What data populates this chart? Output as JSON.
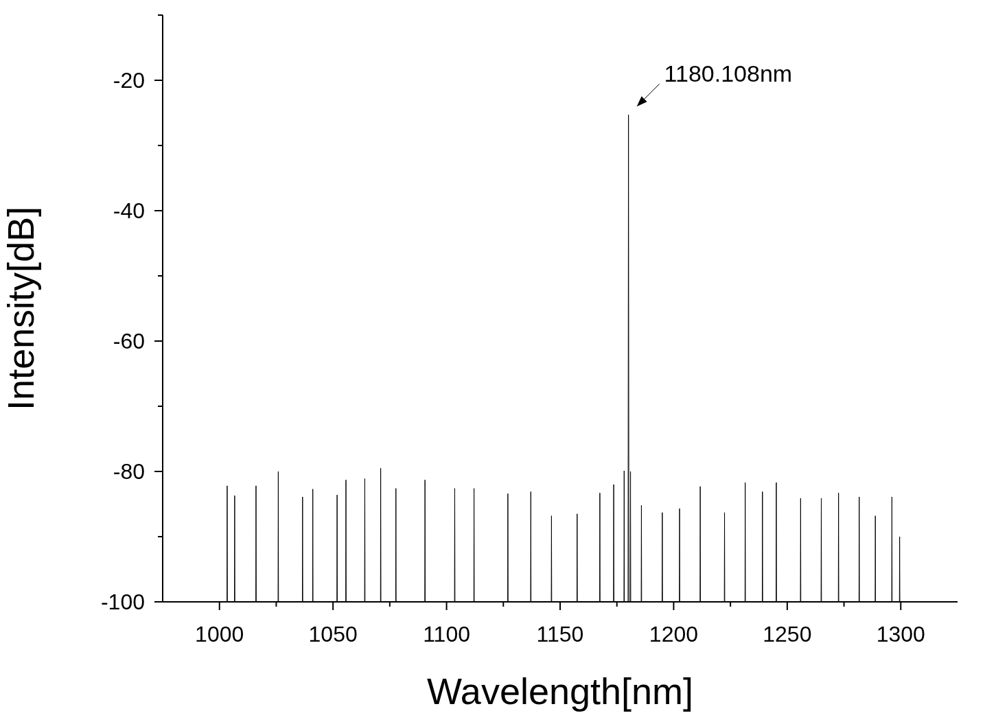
{
  "chart_data": {
    "type": "line",
    "xlabel": "Wavelength[nm]",
    "ylabel": "Intensity[dB]",
    "xlim": [
      975,
      1325
    ],
    "ylim": [
      -100,
      -10
    ],
    "xticks": [
      1000,
      {
        "value": 1025,
        "label": null
      },
      1050,
      {
        "value": 1075,
        "label": null
      },
      1100,
      {
        "value": 1125,
        "label": null
      },
      1150,
      {
        "value": 1175,
        "label": null
      },
      1200,
      {
        "value": 1225,
        "label": null
      },
      1250,
      {
        "value": 1275,
        "label": null
      },
      1300
    ],
    "yticks": [
      -100,
      {
        "value": -90,
        "label": null
      },
      -80,
      {
        "value": -70,
        "label": null
      },
      -60,
      {
        "value": -50,
        "label": null
      },
      -40,
      {
        "value": -30,
        "label": null
      },
      -20,
      {
        "value": -10,
        "label": null
      }
    ],
    "annotations": [
      {
        "text": "1180.108nm",
        "x": 1180.108,
        "y": -25.3
      }
    ],
    "grid": false,
    "legend": false,
    "marker": "none",
    "line_style": "solid",
    "series": [
      {
        "color": "#000000",
        "x": [
          1000,
          1003.3,
          1003.4,
          1003.5,
          1006.6,
          1006.7,
          1006.8,
          1016,
          1016.1,
          1016.2,
          1025.8,
          1025.9,
          1026,
          1036.5,
          1036.6,
          1036.7,
          1041,
          1041.1,
          1041.2,
          1051.7,
          1051.8,
          1051.9,
          1055.6,
          1055.7,
          1055.8,
          1063.9,
          1064,
          1064.1,
          1070.9,
          1071,
          1071.1,
          1077.6,
          1077.7,
          1077.8,
          1090.4,
          1090.5,
          1090.6,
          1103.5,
          1103.6,
          1103.7,
          1112,
          1112.1,
          1112.2,
          1126.9,
          1127,
          1127.1,
          1137,
          1137.1,
          1137.2,
          1146.1,
          1146.2,
          1146.3,
          1157.4,
          1157.5,
          1157.6,
          1167.4,
          1167.5,
          1167.6,
          1173.5,
          1173.6,
          1173.7,
          1178.1,
          1178.2,
          1178.3,
          1179.9,
          1180.108,
          1180.3,
          1180.9,
          1181,
          1181.1,
          1185.7,
          1185.8,
          1185.9,
          1194.9,
          1195,
          1195.1,
          1202.5,
          1202.6,
          1202.7,
          1211.6,
          1211.7,
          1211.8,
          1222.3,
          1222.4,
          1222.5,
          1231.4,
          1231.5,
          1231.6,
          1239,
          1239.1,
          1239.2,
          1245.1,
          1245.2,
          1245.3,
          1255.8,
          1255.9,
          1256,
          1264.9,
          1265,
          1265.1,
          1272.5,
          1272.6,
          1272.7,
          1281.6,
          1281.7,
          1281.8,
          1288.7,
          1288.8,
          1288.9,
          1296,
          1296.1,
          1296.2,
          1299.4,
          1299.5,
          1299.6,
          1300
        ],
        "values": [
          -100,
          -100,
          -82.2,
          -100,
          -100,
          -83.7,
          -100,
          -100,
          -82.2,
          -100,
          -100,
          -80,
          -100,
          -100,
          -83.9,
          -100,
          -100,
          -82.7,
          -100,
          -100,
          -83.6,
          -100,
          -100,
          -81.3,
          -100,
          -100,
          -81.1,
          -100,
          -100,
          -79.5,
          -100,
          -100,
          -82.6,
          -100,
          -100,
          -81.3,
          -100,
          -100,
          -82.6,
          -100,
          -100,
          -82.6,
          -100,
          -100,
          -83.4,
          -100,
          -100,
          -83.1,
          -100,
          -100,
          -86.8,
          -100,
          -100,
          -86.5,
          -100,
          -100,
          -83.3,
          -100,
          -100,
          -82,
          -100,
          -100,
          -79.9,
          -100,
          -100,
          -25.3,
          -100,
          -100,
          -80,
          -100,
          -100,
          -85.2,
          -100,
          -100,
          -86.3,
          -100,
          -100,
          -85.7,
          -100,
          -100,
          -82.3,
          -100,
          -100,
          -86.3,
          -100,
          -100,
          -81.7,
          -100,
          -100,
          -83.1,
          -100,
          -100,
          -81.7,
          -100,
          -100,
          -84.1,
          -100,
          -100,
          -84.1,
          -100,
          -100,
          -83.3,
          -100,
          -100,
          -83.9,
          -100,
          -100,
          -86.8,
          -100,
          -100,
          -83.9,
          -100,
          -100,
          -90,
          -100,
          -100
        ]
      }
    ]
  }
}
